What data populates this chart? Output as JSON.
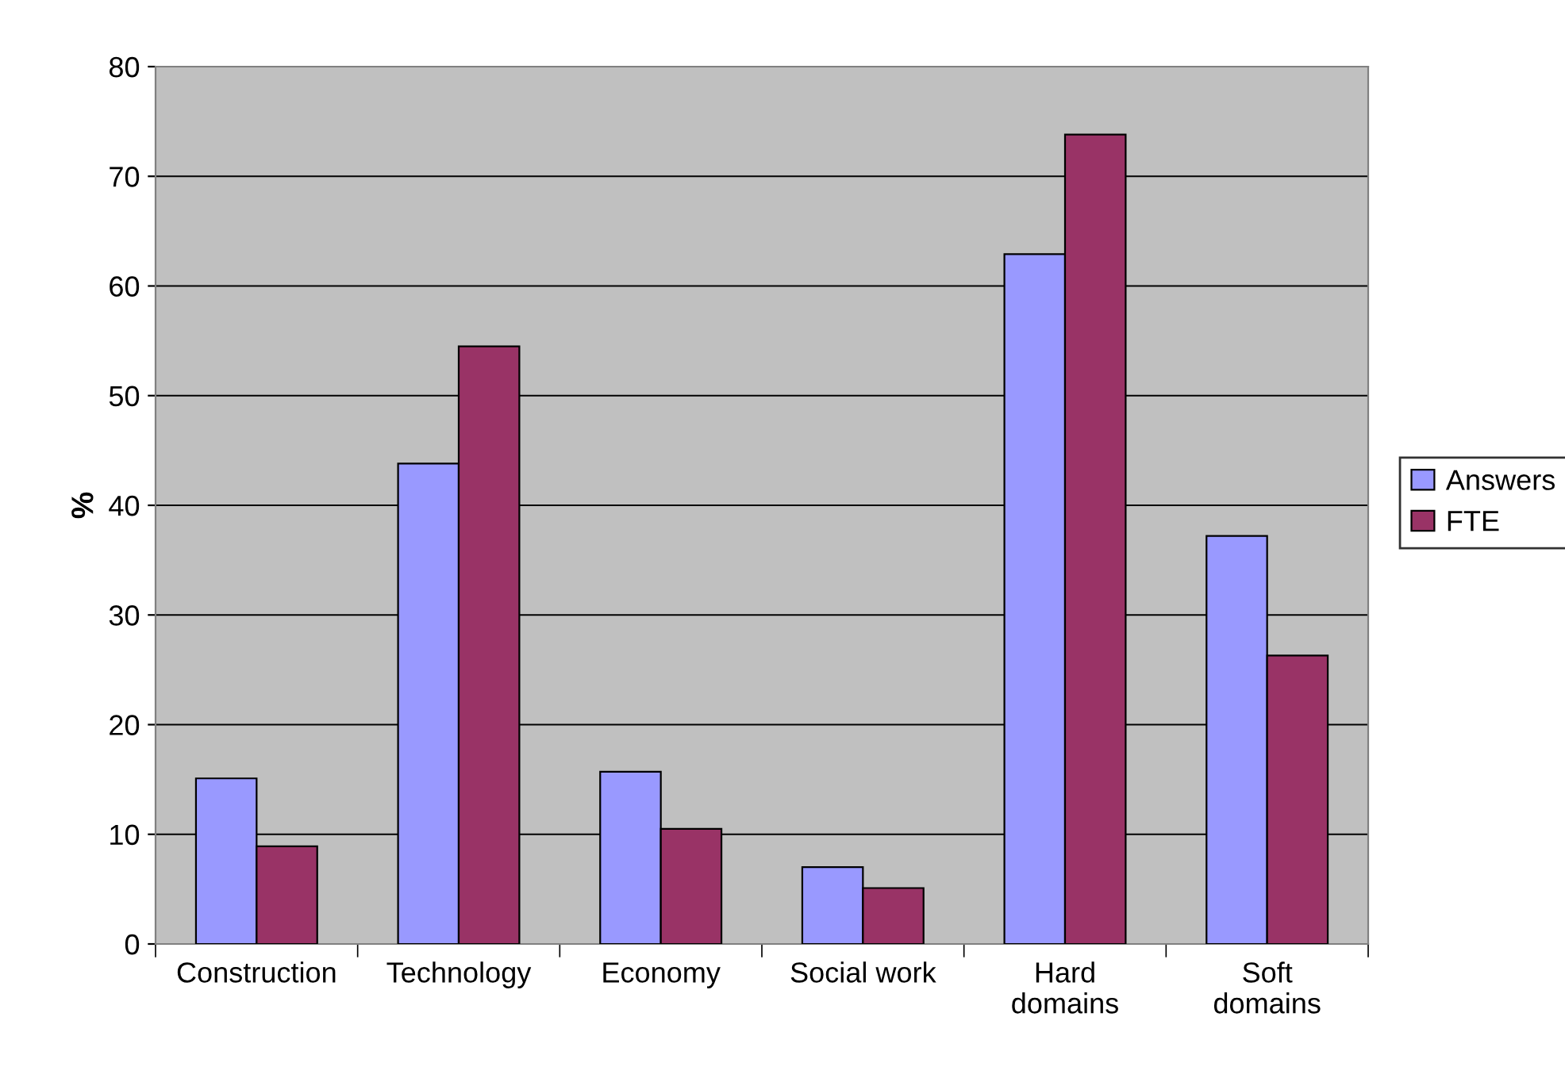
{
  "chart_data": {
    "type": "bar",
    "ylabel": "%",
    "categories": [
      "Construction",
      "Technology",
      "Economy",
      "Social work",
      "Hard\ndomains",
      "Soft\ndomains"
    ],
    "series": [
      {
        "name": "Answers",
        "color": "#9999ff",
        "values": [
          15.1,
          43.8,
          15.7,
          7.0,
          62.9,
          37.2
        ]
      },
      {
        "name": "FTE",
        "color": "#993366",
        "values": [
          8.9,
          54.5,
          10.5,
          5.1,
          73.8,
          26.3
        ]
      }
    ],
    "ylim": [
      0,
      80
    ],
    "yticks": [
      0,
      10,
      20,
      30,
      40,
      50,
      60,
      70,
      80
    ],
    "grid": "y",
    "legend": "right"
  }
}
